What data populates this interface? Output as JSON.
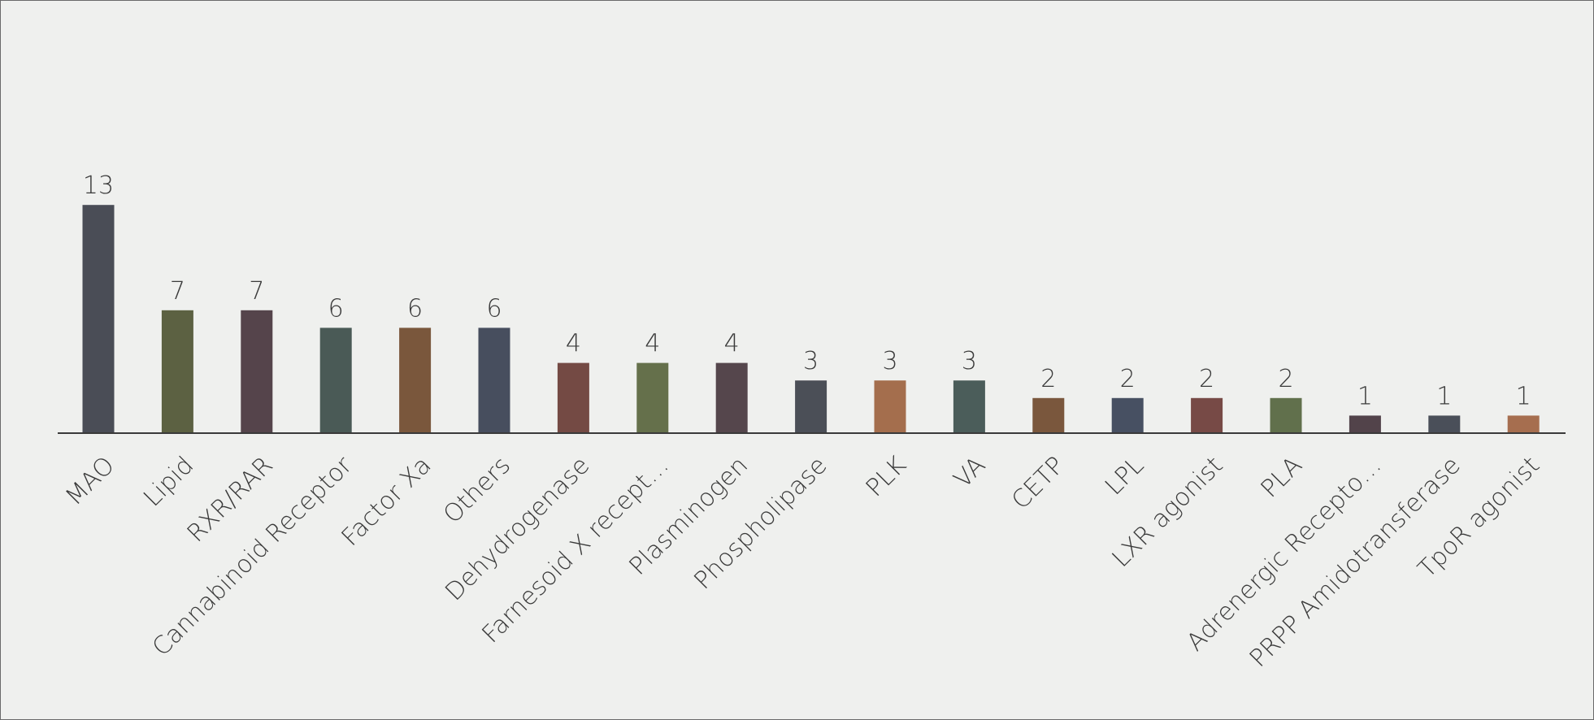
{
  "chart_data": {
    "type": "bar",
    "title": "",
    "xlabel": "",
    "ylabel": "",
    "ylim": [
      0,
      13
    ],
    "grid": false,
    "legend": "none",
    "categories": [
      "MAO",
      "Lipid",
      "RXR/RAR",
      "Cannabinoid Receptor",
      "Factor Xa",
      "Others",
      "Dehydrogenase",
      "Farnesoid X recept…",
      "Plasminogen",
      "Phospholipase",
      "PLK",
      "VA",
      "CETP",
      "LPL",
      "LXR agonist",
      "PLA",
      "Adrenergic Recepto…",
      "PRPP Amidotransferase",
      "TpoR agonist"
    ],
    "values": [
      13,
      7,
      7,
      6,
      6,
      6,
      4,
      4,
      4,
      3,
      3,
      3,
      2,
      2,
      2,
      2,
      1,
      1,
      1
    ],
    "value_labels": [
      "13",
      "7",
      "7",
      "6",
      "6",
      "6",
      "4",
      "4",
      "4",
      "3",
      "3",
      "3",
      "2",
      "2",
      "2",
      "2",
      "1",
      "1",
      "1"
    ],
    "colors": [
      "#4a4d56",
      "#5c6142",
      "#55444b",
      "#4a5a56",
      "#7a573c",
      "#474e5e",
      "#744a44",
      "#65704b",
      "#55464c",
      "#4b4f57",
      "#a46e4d",
      "#4b5d5a",
      "#7a573d",
      "#475062",
      "#774a46",
      "#61704c",
      "#52434a",
      "#4a4f59",
      "#a66e4f"
    ],
    "axis_color": "#3a3a3a"
  }
}
